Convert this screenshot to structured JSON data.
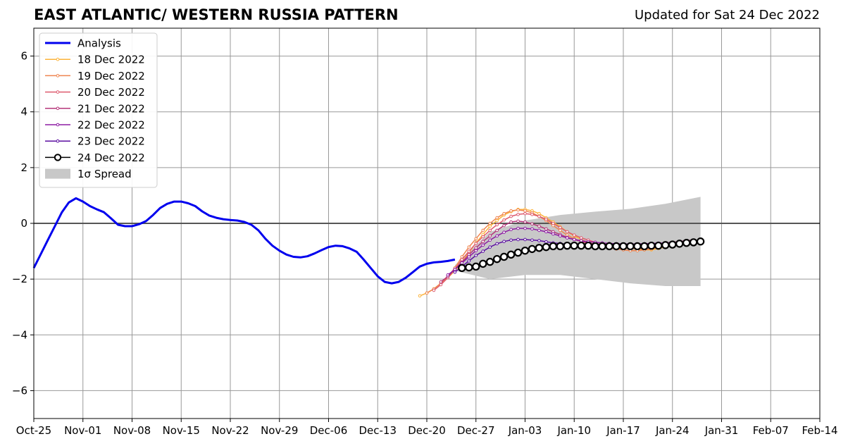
{
  "title": "EAST ATLANTIC/ WESTERN RUSSIA PATTERN",
  "subtitle": "Updated for Sat 24 Dec 2022",
  "colors": {
    "analysis": "#0000ee",
    "spread": "#c8c8c8",
    "grid": "#999999",
    "zero_line": "#555555"
  },
  "chart_data": {
    "type": "line",
    "title": "EAST ATLANTIC/ WESTERN RUSSIA PATTERN",
    "subtitle": "Updated for Sat 24 Dec 2022",
    "xlabel": "",
    "ylabel": "",
    "x_start": "2022-10-25",
    "xlim": [
      "Oct-25",
      "Feb-14"
    ],
    "ylim": [
      -7,
      7
    ],
    "x_ticks": [
      "Oct-25",
      "Nov-01",
      "Nov-08",
      "Nov-15",
      "Nov-22",
      "Nov-29",
      "Dec-06",
      "Dec-13",
      "Dec-20",
      "Dec-27",
      "Jan-03",
      "Jan-10",
      "Jan-17",
      "Jan-24",
      "Jan-31",
      "Feb-07",
      "Feb-14"
    ],
    "y_ticks": [
      -6,
      -4,
      -2,
      0,
      2,
      4,
      6
    ],
    "y_tick_labels": [
      "−6",
      "−4",
      "−2",
      "0",
      "2",
      "4",
      "6"
    ],
    "grid": true,
    "legend_position": "top-left",
    "legend": [
      "Analysis",
      "18 Dec 2022",
      "19 Dec 2022",
      "20 Dec 2022",
      "21 Dec 2022",
      "22 Dec 2022",
      "23 Dec 2022",
      "24 Dec 2022",
      "1σ Spread"
    ],
    "analysis": {
      "name": "Analysis",
      "color": "#0000ee",
      "x": [
        0,
        1,
        2,
        3,
        4,
        5,
        6,
        7,
        8,
        9,
        10,
        11,
        12,
        13,
        14,
        15,
        16,
        17,
        18,
        19,
        20,
        21,
        22,
        23,
        24,
        25,
        26,
        27,
        28,
        29,
        30,
        31,
        32,
        33,
        34,
        35,
        36,
        37,
        38,
        39,
        40,
        41,
        42,
        43,
        44,
        45,
        46,
        47,
        48,
        49,
        50,
        51,
        52,
        53,
        54,
        55,
        56,
        57,
        58,
        59,
        60
      ],
      "y": [
        -1.6,
        -1.1,
        -0.6,
        -0.1,
        0.4,
        0.75,
        0.9,
        0.78,
        0.62,
        0.5,
        0.4,
        0.18,
        -0.05,
        -0.1,
        -0.1,
        -0.03,
        0.08,
        0.3,
        0.55,
        0.7,
        0.78,
        0.78,
        0.72,
        0.62,
        0.43,
        0.28,
        0.2,
        0.15,
        0.12,
        0.1,
        0.05,
        -0.05,
        -0.25,
        -0.55,
        -0.8,
        -0.98,
        -1.12,
        -1.2,
        -1.22,
        -1.18,
        -1.08,
        -0.96,
        -0.85,
        -0.8,
        -0.82,
        -0.9,
        -1.02,
        -1.3,
        -1.6,
        -1.9,
        -2.1,
        -2.15,
        -2.1,
        -1.95,
        -1.75,
        -1.55,
        -1.45,
        -1.4,
        -1.38,
        -1.35,
        -1.3
      ]
    },
    "spread": {
      "name": "1σ Spread",
      "x": [
        60,
        65,
        70,
        75,
        80,
        85,
        90,
        95
      ],
      "upper": [
        -1.5,
        -0.3,
        0.1,
        0.3,
        0.42,
        0.52,
        0.7,
        0.95
      ],
      "lower": [
        -1.7,
        -2.0,
        -1.85,
        -1.85,
        -2.0,
        -2.15,
        -2.25,
        -2.25
      ]
    },
    "series": [
      {
        "name": "18 Dec 2022",
        "color": "#fbb33a",
        "x": [
          55,
          56,
          57,
          58,
          59,
          60,
          61,
          62,
          63,
          64,
          65,
          66,
          67,
          68,
          69,
          70,
          71,
          72,
          73,
          74,
          75,
          76,
          77,
          78,
          79,
          80,
          81,
          82,
          83,
          84,
          85,
          86,
          87,
          88,
          89,
          90,
          91
        ],
        "y": [
          -2.6,
          -2.5,
          -2.35,
          -2.15,
          -1.95,
          -1.7,
          -1.4,
          -1.05,
          -0.7,
          -0.4,
          -0.1,
          0.1,
          0.3,
          0.42,
          0.5,
          0.5,
          0.45,
          0.35,
          0.2,
          0.05,
          -0.12,
          -0.3,
          -0.45,
          -0.58,
          -0.68,
          -0.75,
          -0.8,
          -0.82,
          -0.85,
          -0.88,
          -0.9,
          -0.92,
          -0.95,
          -0.95,
          -0.9,
          -0.85,
          -0.8
        ]
      },
      {
        "name": "19 Dec 2022",
        "color": "#ef8550",
        "x": [
          56,
          57,
          58,
          59,
          60,
          61,
          62,
          63,
          64,
          65,
          66,
          67,
          68,
          69,
          70,
          71,
          72,
          73,
          74,
          75,
          76,
          77,
          78,
          79,
          80,
          81,
          82,
          83,
          84,
          85,
          86,
          87,
          88,
          89,
          90,
          91,
          92
        ],
        "y": [
          -2.5,
          -2.35,
          -2.15,
          -1.9,
          -1.6,
          -1.2,
          -0.85,
          -0.55,
          -0.25,
          0.0,
          0.2,
          0.35,
          0.45,
          0.48,
          0.45,
          0.38,
          0.25,
          0.1,
          -0.08,
          -0.25,
          -0.42,
          -0.55,
          -0.65,
          -0.72,
          -0.8,
          -0.85,
          -0.88,
          -0.92,
          -0.95,
          -0.98,
          -0.98,
          -0.95,
          -0.92,
          -0.85,
          -0.78,
          -0.72,
          -0.68
        ]
      },
      {
        "name": "20 Dec 2022",
        "color": "#dd5a6e",
        "x": [
          57,
          58,
          59,
          60,
          61,
          62,
          63,
          64,
          65,
          66,
          67,
          68,
          69,
          70,
          71,
          72,
          73,
          74,
          75,
          76,
          77,
          78,
          79,
          80,
          81,
          82,
          83,
          84,
          85,
          86,
          87,
          88,
          89,
          90,
          91,
          92,
          93
        ],
        "y": [
          -2.4,
          -2.2,
          -1.95,
          -1.65,
          -1.3,
          -1.0,
          -0.72,
          -0.48,
          -0.25,
          -0.05,
          0.12,
          0.25,
          0.32,
          0.35,
          0.32,
          0.25,
          0.15,
          0.0,
          -0.15,
          -0.3,
          -0.42,
          -0.52,
          -0.6,
          -0.68,
          -0.72,
          -0.78,
          -0.82,
          -0.85,
          -0.88,
          -0.9,
          -0.9,
          -0.88,
          -0.85,
          -0.8,
          -0.75,
          -0.7,
          -0.65
        ]
      },
      {
        "name": "21 Dec 2022",
        "color": "#b5367a",
        "x": [
          58,
          59,
          60,
          61,
          62,
          63,
          64,
          65,
          66,
          67,
          68,
          69,
          70,
          71,
          72,
          73,
          74,
          75,
          76,
          77,
          78,
          79,
          80,
          81,
          82,
          83,
          84,
          85,
          86,
          87,
          88,
          89,
          90,
          91,
          92,
          93,
          94
        ],
        "y": [
          -2.1,
          -1.9,
          -1.65,
          -1.4,
          -1.12,
          -0.88,
          -0.65,
          -0.45,
          -0.25,
          -0.08,
          0.05,
          0.08,
          0.05,
          -0.02,
          -0.1,
          -0.2,
          -0.3,
          -0.4,
          -0.5,
          -0.58,
          -0.65,
          -0.7,
          -0.75,
          -0.78,
          -0.8,
          -0.82,
          -0.82,
          -0.82,
          -0.8,
          -0.78,
          -0.75,
          -0.72,
          -0.7,
          -0.68,
          -0.65,
          -0.62,
          -0.6
        ]
      },
      {
        "name": "22 Dec 2022",
        "color": "#8e1da4",
        "x": [
          59,
          60,
          61,
          62,
          63,
          64,
          65,
          66,
          67,
          68,
          69,
          70,
          71,
          72,
          73,
          74,
          75,
          76,
          77,
          78,
          79,
          80,
          81,
          82,
          83,
          84,
          85,
          86,
          87,
          88,
          89,
          90,
          91,
          92,
          93,
          94,
          95
        ],
        "y": [
          -1.85,
          -1.65,
          -1.42,
          -1.2,
          -0.98,
          -0.78,
          -0.6,
          -0.45,
          -0.32,
          -0.22,
          -0.18,
          -0.18,
          -0.2,
          -0.25,
          -0.3,
          -0.38,
          -0.45,
          -0.52,
          -0.58,
          -0.62,
          -0.66,
          -0.68,
          -0.7,
          -0.72,
          -0.73,
          -0.74,
          -0.74,
          -0.74,
          -0.73,
          -0.72,
          -0.71,
          -0.7,
          -0.69,
          -0.68,
          -0.67,
          -0.66,
          -0.65
        ]
      },
      {
        "name": "23 Dec 2022",
        "color": "#5a0ea0",
        "x": [
          60,
          61,
          62,
          63,
          64,
          65,
          66,
          67,
          68,
          69,
          70,
          71,
          72,
          73,
          74,
          75,
          76,
          77,
          78,
          79,
          80,
          81,
          82,
          83,
          84,
          85,
          86,
          87,
          88,
          89,
          90,
          91,
          92,
          93,
          94,
          95
        ],
        "y": [
          -1.75,
          -1.55,
          -1.35,
          -1.15,
          -1.0,
          -0.85,
          -0.73,
          -0.65,
          -0.6,
          -0.58,
          -0.58,
          -0.6,
          -0.62,
          -0.66,
          -0.7,
          -0.72,
          -0.75,
          -0.76,
          -0.78,
          -0.78,
          -0.79,
          -0.79,
          -0.8,
          -0.8,
          -0.8,
          -0.8,
          -0.79,
          -0.78,
          -0.77,
          -0.76,
          -0.75,
          -0.73,
          -0.71,
          -0.69,
          -0.67,
          -0.65
        ]
      }
    ],
    "current": {
      "name": "24 Dec 2022",
      "x": [
        61,
        62,
        63,
        64,
        65,
        66,
        67,
        68,
        69,
        70,
        71,
        72,
        73,
        74,
        75,
        76,
        77,
        78,
        79,
        80,
        81,
        82,
        83,
        84,
        85,
        86,
        87,
        88,
        89,
        90,
        91,
        92,
        93,
        94,
        95
      ],
      "y": [
        -1.6,
        -1.58,
        -1.55,
        -1.45,
        -1.38,
        -1.28,
        -1.2,
        -1.12,
        -1.05,
        -0.98,
        -0.92,
        -0.88,
        -0.85,
        -0.82,
        -0.82,
        -0.8,
        -0.8,
        -0.8,
        -0.8,
        -0.82,
        -0.82,
        -0.82,
        -0.82,
        -0.82,
        -0.82,
        -0.82,
        -0.82,
        -0.8,
        -0.8,
        -0.78,
        -0.76,
        -0.73,
        -0.7,
        -0.68,
        -0.65
      ]
    }
  }
}
